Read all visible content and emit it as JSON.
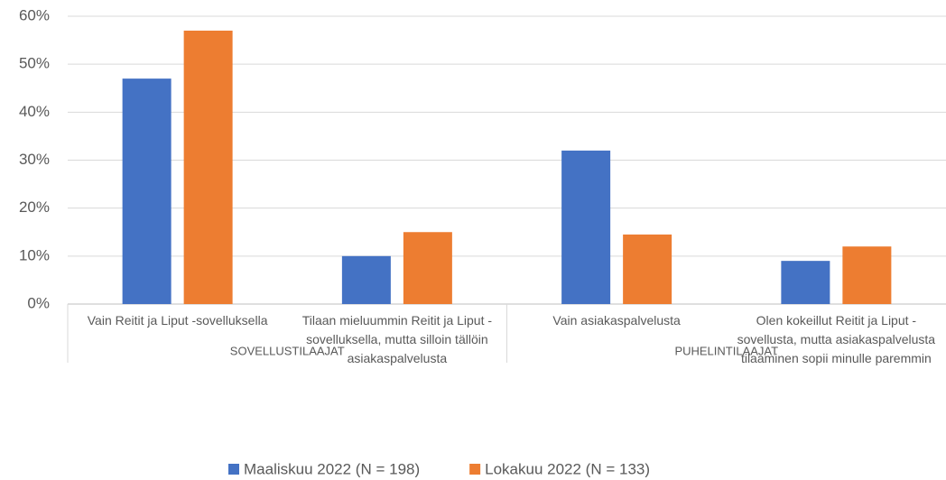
{
  "chart_data": {
    "type": "bar",
    "categories": [
      "Vain Reitit ja Liput -sovelluksella",
      "Tilaan mieluummin Reitit ja Liput -sovelluksella, mutta silloin tällöin asiakaspalvelusta",
      "Vain asiakaspalvelusta",
      "Olen kokeillut Reitit ja Liput -sovellusta, mutta asiakaspalvelusta tilaaminen sopii minulle paremmin"
    ],
    "groups": [
      "SOVELLUSTILAAJAT",
      "PUHELINTILAAJAT"
    ],
    "series": [
      {
        "name": "Maaliskuu 2022 (N = 198)",
        "color": "#4472c4",
        "values": [
          47,
          10,
          32,
          9
        ]
      },
      {
        "name": "Lokakuu 2022 (N = 133)",
        "color": "#ed7d31",
        "values": [
          57,
          15,
          14.5,
          12
        ]
      }
    ],
    "ylim": [
      0,
      60
    ],
    "yticks": [
      {
        "value": 0,
        "label": "0%"
      },
      {
        "value": 10,
        "label": "10%"
      },
      {
        "value": 20,
        "label": "20%"
      },
      {
        "value": 30,
        "label": "30%"
      },
      {
        "value": 40,
        "label": "40%"
      },
      {
        "value": 50,
        "label": "50%"
      },
      {
        "value": 60,
        "label": "60%"
      }
    ],
    "grid": true,
    "legend": "bottom"
  }
}
